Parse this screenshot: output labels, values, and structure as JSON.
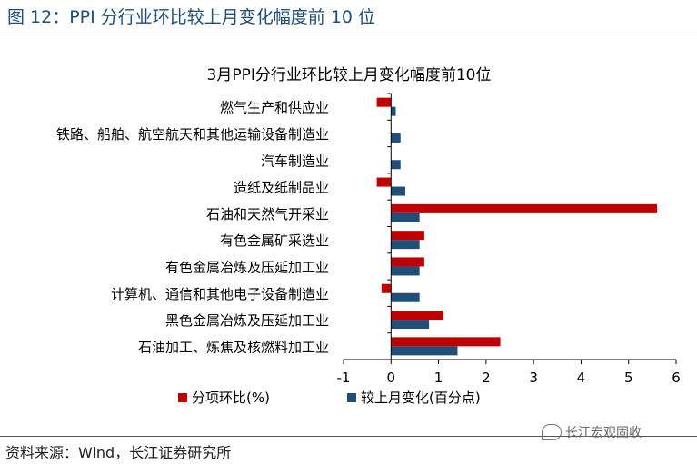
{
  "figure_title": "图 12：PPI 分行业环比较上月变化幅度前 10 位",
  "source": "资料来源：Wind，长江证券研究所",
  "watermark": "长江宏观固收",
  "watermark_icon": "wechat-icon",
  "colors": {
    "series1": "#c00000",
    "series2": "#1f4e79",
    "title": "#1f4e79"
  },
  "chart_data": {
    "type": "bar",
    "orientation": "horizontal",
    "title": "3月PPI分行业环比较上月变化幅度前10位",
    "categories": [
      "燃气生产和供应业",
      "铁路、船舶、航空航天和其他运输设备制造业",
      "汽车制造业",
      "造纸及纸制品业",
      "石油和天然气开采业",
      "有色金属矿采选业",
      "有色金属冶炼及压延加工业",
      "计算机、通信和其他电子设备制造业",
      "黑色金属冶炼及压延加工业",
      "石油加工、炼焦及核燃料加工业"
    ],
    "series": [
      {
        "name": "分项环比(%)",
        "values": [
          -0.3,
          0.0,
          0.0,
          -0.3,
          5.6,
          0.7,
          0.7,
          -0.2,
          1.1,
          2.3
        ]
      },
      {
        "name": "较上月变化(百分点)",
        "values": [
          0.1,
          0.2,
          0.2,
          0.3,
          0.6,
          0.6,
          0.6,
          0.6,
          0.8,
          1.4
        ]
      }
    ],
    "xlim": [
      -1,
      6
    ],
    "xticks": [
      "-1",
      "0",
      "1",
      "2",
      "3",
      "4",
      "5",
      "6"
    ],
    "grid": false,
    "legend_position": "bottom"
  }
}
